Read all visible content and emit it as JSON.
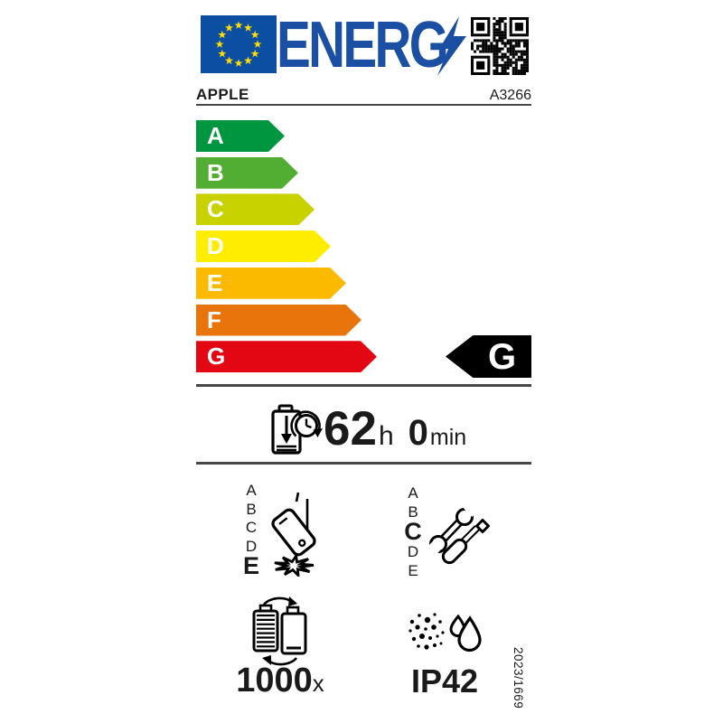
{
  "header": {
    "logo_text": "ENERG",
    "logo_bolt_icon": "lightning-bolt-icon",
    "qr_icon": "qr-code",
    "flag_icon": "eu-flag"
  },
  "product": {
    "brand": "APPLE",
    "model": "A3266"
  },
  "rating": {
    "scale": [
      {
        "grade": "A",
        "color": "#009640"
      },
      {
        "grade": "B",
        "color": "#52ae32"
      },
      {
        "grade": "C",
        "color": "#c8d200"
      },
      {
        "grade": "D",
        "color": "#ffed00"
      },
      {
        "grade": "E",
        "color": "#fbba00"
      },
      {
        "grade": "F",
        "color": "#e8740b"
      },
      {
        "grade": "G",
        "color": "#e30613"
      }
    ],
    "current_grade": "G"
  },
  "battery_life": {
    "hours": "62",
    "hours_unit": "h",
    "minutes": "0",
    "minutes_unit": "min"
  },
  "drop_resistance": {
    "scale": [
      "A",
      "B",
      "C",
      "D",
      "E"
    ],
    "grade": "E",
    "icon": "falling-phone-icon"
  },
  "repairability": {
    "scale": [
      "A",
      "B",
      "C",
      "D",
      "E"
    ],
    "grade": "C",
    "icon": "wrench-screwdriver-icon"
  },
  "battery_cycles": {
    "value": "1000",
    "unit": "x",
    "icon": "battery-charge-cycle-icon"
  },
  "ingress_protection": {
    "value": "IP42",
    "icon": "dust-water-icon"
  },
  "regulation": "2023/1669"
}
